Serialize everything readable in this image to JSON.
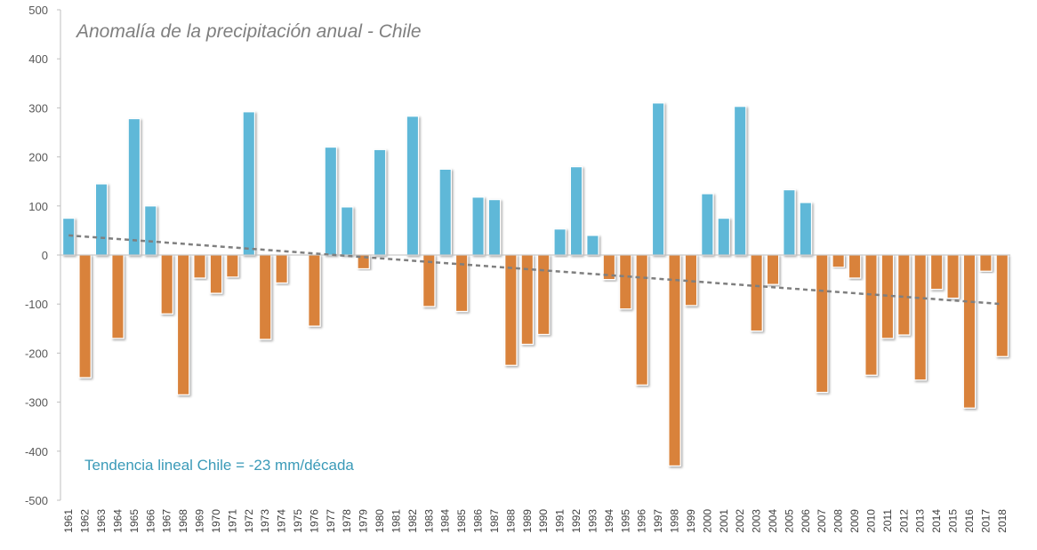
{
  "chart_data": {
    "type": "bar",
    "title": "Anomalía de la precipitación anual - Chile",
    "xlabel": "",
    "ylabel": "",
    "ylim": [
      -500,
      500
    ],
    "yticks": [
      500,
      400,
      300,
      200,
      100,
      0,
      -100,
      -200,
      -300,
      -400,
      -500
    ],
    "categories": [
      "1961",
      "1962",
      "1963",
      "1964",
      "1965",
      "1966",
      "1967",
      "1968",
      "1969",
      "1970",
      "1971",
      "1972",
      "1973",
      "1974",
      "1975",
      "1976",
      "1977",
      "1978",
      "1979",
      "1980",
      "1981",
      "1982",
      "1983",
      "1984",
      "1985",
      "1986",
      "1987",
      "1988",
      "1989",
      "1990",
      "1991",
      "1992",
      "1993",
      "1994",
      "1995",
      "1996",
      "1997",
      "1998",
      "1999",
      "2000",
      "2001",
      "2002",
      "2003",
      "2004",
      "2005",
      "2006",
      "2007",
      "2008",
      "2009",
      "2010",
      "2011",
      "2012",
      "2013",
      "2014",
      "2015",
      "2016",
      "2017",
      "2018"
    ],
    "values": [
      75,
      -250,
      145,
      -170,
      278,
      100,
      -120,
      -285,
      -47,
      -78,
      -45,
      292,
      -172,
      -57,
      0,
      -145,
      220,
      98,
      -28,
      215,
      0,
      283,
      -105,
      175,
      -115,
      118,
      113,
      -225,
      -182,
      -162,
      53,
      180,
      40,
      -50,
      -110,
      -265,
      310,
      -430,
      -103,
      125,
      75,
      303,
      -155,
      -60,
      133,
      107,
      -280,
      -25,
      -47,
      -245,
      -170,
      -163,
      -255,
      -70,
      -88,
      -312,
      -33,
      -207
    ],
    "positive_color": "#5fb8d8",
    "negative_color": "#d9823b",
    "trend": {
      "label": "Tendencia lineal Chile = -23 mm/década",
      "start_value": 40,
      "end_value": -100,
      "color": "#7f7f7f"
    }
  }
}
